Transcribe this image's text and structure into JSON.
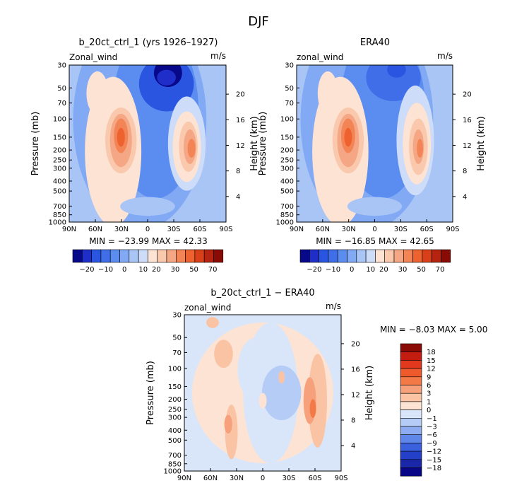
{
  "figure": {
    "title": "DJF"
  },
  "panels": [
    {
      "id": "model",
      "title": "b_20ct_ctrl_1 (yrs 1926–1927)",
      "left_label": "Zonal_wind",
      "unit": "m/s",
      "stats": "MIN = −23.99   MAX =  42.33"
    },
    {
      "id": "obs",
      "title": "ERA40",
      "left_label": "zonal_wind",
      "unit": "m/s",
      "stats": "MIN = −16.85   MAX =  42.65"
    },
    {
      "id": "diff",
      "title": "b_20ct_ctrl_1 − ERA40",
      "left_label": "zonal_wind",
      "unit": "m/s",
      "stats": "MIN =   −8.03   MAX =    5.00"
    }
  ],
  "axes": {
    "ylabel": "Pressure (mb)",
    "y2label": "Height (km)",
    "x_ticks": [
      "90N",
      "60N",
      "30N",
      "0",
      "30S",
      "60S",
      "90S"
    ],
    "p_ticks": [
      "30",
      "50",
      "70",
      "100",
      "150",
      "200",
      "250",
      "300",
      "400",
      "500",
      "700",
      "850",
      "1000"
    ],
    "p_values": [
      30,
      50,
      70,
      100,
      150,
      200,
      250,
      300,
      400,
      500,
      700,
      850,
      1000
    ],
    "h_ticks": [
      "20",
      "16",
      "12",
      "8",
      "4"
    ],
    "h_values": [
      20,
      16,
      12,
      8,
      4
    ]
  },
  "colorbar_abs": {
    "labels": [
      "−20",
      "−10",
      "0",
      "10",
      "20",
      "30",
      "50",
      "70"
    ],
    "colors": [
      "#08088a",
      "#1f2ec8",
      "#2a55e0",
      "#3f6ee8",
      "#5b8df0",
      "#82a9f4",
      "#a9c5f6",
      "#cddcf8",
      "#fde3d3",
      "#f9c8ad",
      "#f5a785",
      "#f38456",
      "#ee622f",
      "#d8401a",
      "#b52410",
      "#8a0b06"
    ]
  },
  "colorbar_diff": {
    "labels": [
      "18",
      "15",
      "12",
      "9",
      "6",
      "3",
      "1",
      "0",
      "−1",
      "−3",
      "−6",
      "−9",
      "−12",
      "−15",
      "−18"
    ],
    "colors": [
      "#8a0b06",
      "#c21d10",
      "#e2381d",
      "#ef5a2c",
      "#f37a46",
      "#f6a07c",
      "#f9c3a4",
      "#fde3d3",
      "#d9e6fa",
      "#b5cdf6",
      "#8dacf2",
      "#5f87ea",
      "#3a60de",
      "#2440c8",
      "#1a27a8",
      "#080886"
    ]
  },
  "chart_data": [
    {
      "type": "heatmap",
      "title": "b_20ct_ctrl_1 (yrs 1926–1927)",
      "field": "Zonal_wind",
      "unit": "m/s",
      "xlabel": "",
      "ylabel": "Pressure (mb)",
      "y2label": "Height (km)",
      "x_range": [
        "90N",
        "90S"
      ],
      "ylim": [
        1000,
        30
      ],
      "min": -23.99,
      "max": 42.33,
      "features": [
        {
          "type": "jet_max",
          "lat": "28N",
          "p": 200,
          "value": 42
        },
        {
          "type": "jet_max",
          "lat": "45S",
          "p": 220,
          "value": 35
        },
        {
          "type": "easterly_min",
          "lat": "15S",
          "p": 30,
          "value": -24
        }
      ]
    },
    {
      "type": "heatmap",
      "title": "ERA40",
      "field": "zonal_wind",
      "unit": "m/s",
      "xlabel": "",
      "ylabel": "Pressure (mb)",
      "y2label": "Height (km)",
      "x_range": [
        "90N",
        "90S"
      ],
      "ylim": [
        1000,
        30
      ],
      "min": -16.85,
      "max": 42.65,
      "features": [
        {
          "type": "jet_max",
          "lat": "30N",
          "p": 200,
          "value": 42
        },
        {
          "type": "jet_max",
          "lat": "50S",
          "p": 220,
          "value": 33
        },
        {
          "type": "easterly_min",
          "lat": "20S",
          "p": 30,
          "value": -17
        }
      ]
    },
    {
      "type": "heatmap",
      "title": "b_20ct_ctrl_1 − ERA40",
      "field": "zonal_wind",
      "unit": "m/s",
      "xlabel": "",
      "ylabel": "Pressure (mb)",
      "y2label": "Height (km)",
      "x_range": [
        "90N",
        "90S"
      ],
      "ylim": [
        1000,
        30
      ],
      "min": -8.03,
      "max": 5.0,
      "features": [
        {
          "type": "positive_band",
          "lat": "40S",
          "p": 200,
          "value": 5
        },
        {
          "type": "positive_band",
          "lat": "45N",
          "p": 200,
          "value": 3
        },
        {
          "type": "negative_band",
          "lat": "10S",
          "p": 100,
          "value": -8
        }
      ]
    }
  ]
}
